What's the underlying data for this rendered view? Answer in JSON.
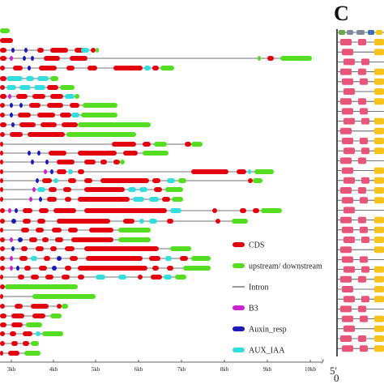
{
  "panel_letter": "C",
  "legend": [
    {
      "key": "cds",
      "label": "CDS",
      "color": "#e3000f",
      "kind": "box"
    },
    {
      "key": "utr",
      "label": "upstream/ downstream",
      "color": "#55dd22",
      "kind": "box"
    },
    {
      "key": "intron",
      "label": "Intron",
      "color": "#333333",
      "kind": "line"
    },
    {
      "key": "b3",
      "label": "B3",
      "color": "#cc22cc",
      "kind": "box"
    },
    {
      "key": "auxin",
      "label": "Auxin_resp",
      "color": "#1a1ab8",
      "kind": "box"
    },
    {
      "key": "aux_iaa",
      "label": "AUX_IAA",
      "color": "#33dddd",
      "kind": "box"
    }
  ],
  "axis": {
    "ticks": [
      "3kb",
      "4kb",
      "5kb",
      "6kb",
      "7kb",
      "8kb",
      "9kb",
      "10kb"
    ],
    "end_mark": "y"
  },
  "panel_c": {
    "axis_labels": [
      "5'",
      "0"
    ],
    "colors": {
      "pink": "#e8557a",
      "yellow": "#f7c21b",
      "green": "#6aa84f",
      "gray": "#7f8a99",
      "blue": "#3d6fb6"
    }
  }
}
